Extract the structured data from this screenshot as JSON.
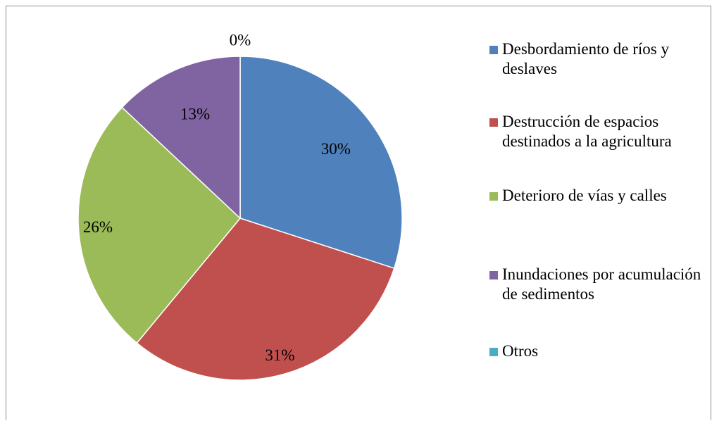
{
  "chart_data": {
    "type": "pie",
    "start_angle_deg": 0,
    "direction": "clockwise",
    "slices": [
      {
        "label": "Desbordamiento de ríos y deslaves",
        "value": 30,
        "display": "30%",
        "color": "#4f81bd"
      },
      {
        "label": "Destrucción de espacios destinados a la agricultura",
        "value": 31,
        "display": "31%",
        "color": "#c0504d"
      },
      {
        "label": "Deterioro de vías y calles",
        "value": 26,
        "display": "26%",
        "color": "#9bbb59"
      },
      {
        "label": "Inundaciones por acumulación de sedimentos",
        "value": 13,
        "display": "13%",
        "color": "#8064a2"
      },
      {
        "label": "Otros",
        "value": 0,
        "display": "0%",
        "color": "#4bacc6"
      }
    ],
    "legend_position": "right"
  }
}
